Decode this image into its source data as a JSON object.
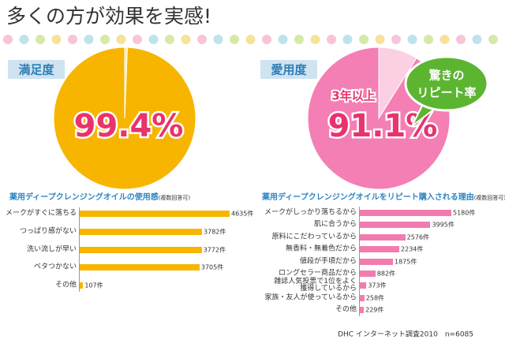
{
  "title": "多くの方が効果を実感!",
  "footer": "DHC インターネット調査2010　n=6085",
  "chart_data": [
    {
      "type": "pie",
      "label": "満足度",
      "values": [
        99.4,
        0.6
      ],
      "value_labels": [
        "99.4%"
      ],
      "colors": [
        "#f7b500",
        "#fde9a6"
      ]
    },
    {
      "type": "pie",
      "label": "愛用度",
      "values": [
        91.1,
        8.9
      ],
      "value_labels": [
        "91.1%"
      ],
      "colors": [
        "#f47fb4",
        "#fbd0e2"
      ],
      "annotations": [
        "3年以上",
        "驚きの",
        "リピート率"
      ]
    },
    {
      "type": "hbar",
      "title": "薬用ディープクレンジングオイルの使用感",
      "note": "(複数回答可)",
      "color": "#f7b500",
      "categories": [
        "メークがすぐに落ちる",
        "つっぱり感がない",
        "洗い流しが早い",
        "ベタつかない",
        "その他"
      ],
      "values": [
        4635,
        3782,
        3772,
        3705,
        107
      ],
      "value_labels": [
        "4635件",
        "3782件",
        "3772件",
        "3705件",
        "107件"
      ]
    },
    {
      "type": "hbar",
      "title": "薬用ディープクレンジングオイルをリピート購入される理由",
      "note": "(複数回答可)",
      "color": "#f27cb0",
      "categories": [
        "メークがしっかり落ちるから",
        "肌に合うから",
        "原料にこだわっているから",
        "無香料・無着色だから",
        "値段が手頃だから",
        "ロングセラー商品だから",
        "雑誌人気投票で1位をよく\n獲得しているから",
        "家族・友人が使っているから",
        "その他"
      ],
      "values": [
        5180,
        3995,
        2576,
        2234,
        1875,
        882,
        373,
        258,
        229
      ],
      "value_labels": [
        "5180件",
        "3995件",
        "2576件",
        "2234件",
        "1875件",
        "882件",
        "373件",
        "258件",
        "229件"
      ]
    }
  ]
}
